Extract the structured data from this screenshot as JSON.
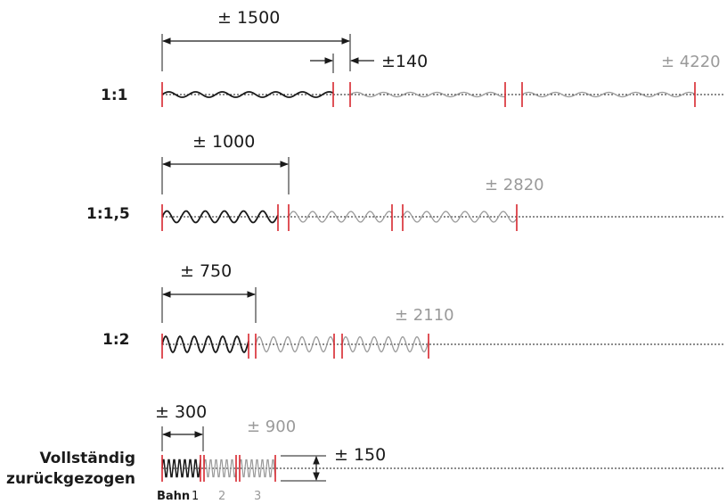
{
  "rows": [
    {
      "label": "1:1",
      "dimension": "± 1500",
      "gap": "±140",
      "total": "± 4220"
    },
    {
      "label": "1:1,5",
      "dimension": "± 1000",
      "total": "± 2820"
    },
    {
      "label": "1:2",
      "dimension": "± 750",
      "total": "± 2110"
    },
    {
      "label_line1": "Vollständig",
      "label_line2": "zurückgezogen",
      "dimension": "± 300",
      "total": "± 900",
      "height": "± 150"
    }
  ],
  "lanes": {
    "label": "Bahn",
    "items": [
      "1",
      "2",
      "3"
    ]
  },
  "colors": {
    "black": "#1a1a1a",
    "grey": "#9a9a9a",
    "red": "#d7262e"
  }
}
